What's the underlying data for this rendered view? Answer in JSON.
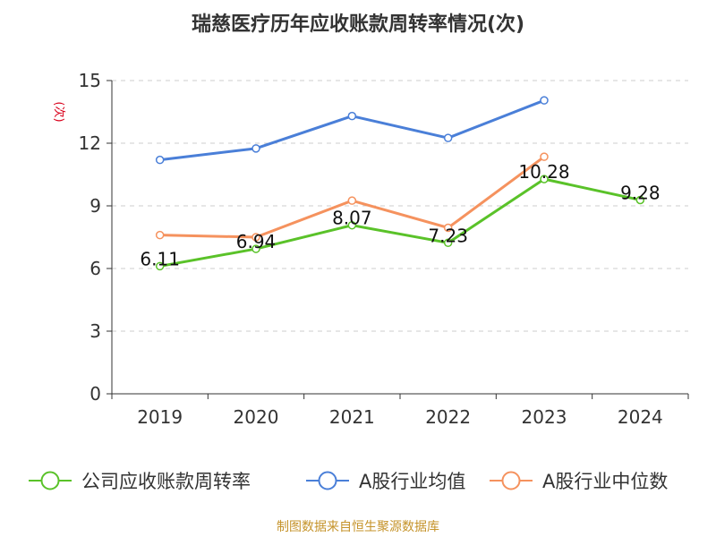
{
  "chart_data": {
    "type": "line",
    "title": "瑞慈医疗历年应收账款周转率情况(次)",
    "ylabel": "(次)",
    "categories": [
      "2019",
      "2020",
      "2021",
      "2022",
      "2023",
      "2024"
    ],
    "ylim": [
      0,
      15
    ],
    "yticks": [
      0,
      3,
      6,
      9,
      12,
      15
    ],
    "grid": true,
    "legend_position": "bottom",
    "series": [
      {
        "name": "公司应收账款周转率",
        "color": "#5ac229",
        "values": [
          6.11,
          6.94,
          8.07,
          7.23,
          10.28,
          9.28
        ],
        "labels": [
          "6.11",
          "6.94",
          "8.07",
          "7.23",
          "10.28",
          "9.28"
        ]
      },
      {
        "name": "A股行业均值",
        "color": "#4a7fd8",
        "values": [
          11.2,
          11.75,
          13.3,
          12.25,
          14.05,
          null
        ]
      },
      {
        "name": "A股行业中位数",
        "color": "#f5925e",
        "values": [
          7.6,
          7.5,
          9.25,
          7.95,
          11.35,
          null
        ]
      }
    ]
  },
  "source_text": "制图数据来自恒生聚源数据库"
}
